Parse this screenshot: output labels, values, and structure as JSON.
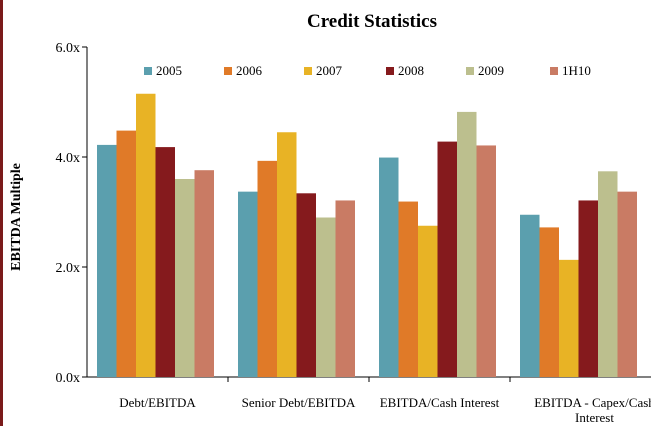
{
  "chart_data": {
    "type": "bar",
    "title": "Credit Statistics",
    "ylabel": "EBITDA Multiple",
    "xlabel": "",
    "ylim": [
      0,
      6
    ],
    "yticks": [
      {
        "value": 0,
        "label": "0.0x"
      },
      {
        "value": 2,
        "label": "2.0x"
      },
      {
        "value": 4,
        "label": "4.0x"
      },
      {
        "value": 6,
        "label": "6.0x"
      }
    ],
    "categories": [
      [
        "Debt/EBITDA"
      ],
      [
        "Senior Debt/EBITDA"
      ],
      [
        "EBITDA/Cash Interest"
      ],
      [
        "EBITDA - Capex/Cash",
        "Interest"
      ]
    ],
    "series": [
      {
        "name": "2005",
        "color": "#5b9fae",
        "values": [
          4.22,
          3.37,
          3.99,
          2.95
        ]
      },
      {
        "name": "2006",
        "color": "#e07a28",
        "values": [
          4.48,
          3.93,
          3.19,
          2.72
        ]
      },
      {
        "name": "2007",
        "color": "#e8b325",
        "values": [
          5.15,
          4.45,
          2.75,
          2.13
        ]
      },
      {
        "name": "2008",
        "color": "#851a1d",
        "values": [
          4.18,
          3.34,
          4.28,
          3.21
        ]
      },
      {
        "name": "2009",
        "color": "#bcbf8e",
        "values": [
          3.6,
          2.9,
          4.82,
          3.74
        ]
      },
      {
        "name": "1H10",
        "color": "#c97b64",
        "values": [
          3.76,
          3.21,
          4.21,
          3.37
        ]
      }
    ],
    "legend_position": "top",
    "grid": false
  }
}
